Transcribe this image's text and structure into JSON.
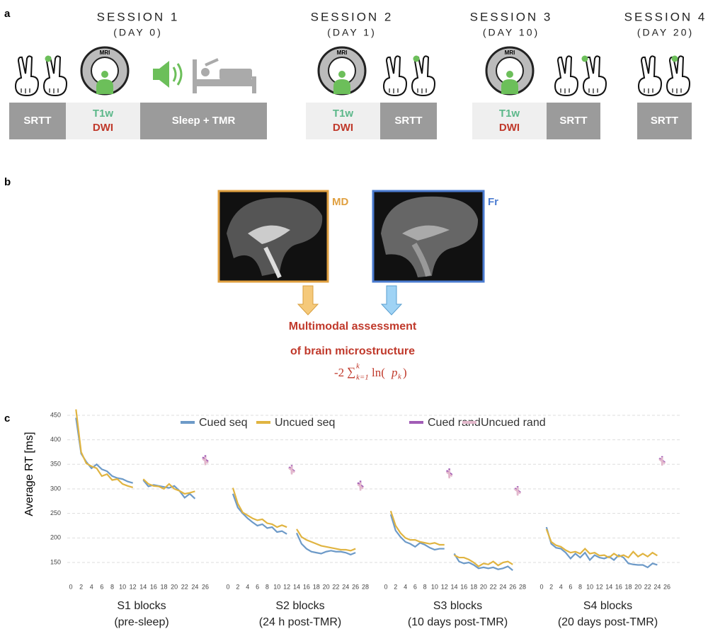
{
  "panel_labels": [
    "a",
    "b",
    "c"
  ],
  "mri_icon_label": "MRI",
  "sessions": [
    {
      "title": "SESSION 1",
      "day": "(DAY 0)",
      "boxes": [
        {
          "lines": [
            "SRTT"
          ]
        },
        {
          "lines": [
            "T1w",
            "DWI"
          ]
        },
        {
          "lines": [
            "Sleep + TMR"
          ]
        }
      ]
    },
    {
      "title": "SESSION 2",
      "day": "(DAY 1)",
      "boxes": [
        {
          "lines": [
            "T1w",
            "DWI"
          ]
        },
        {
          "lines": [
            "SRTT"
          ]
        }
      ]
    },
    {
      "title": "SESSION 3",
      "day": "(DAY 10)",
      "boxes": [
        {
          "lines": [
            "T1w",
            "DWI"
          ]
        },
        {
          "lines": [
            "SRTT"
          ]
        }
      ]
    },
    {
      "title": "SESSION 4",
      "day": "(DAY 20)",
      "boxes": [
        {
          "lines": [
            "SRTT"
          ]
        }
      ]
    }
  ],
  "panel_b": {
    "images": [
      "MD",
      "Fr"
    ],
    "text": [
      "Multimodal assessment",
      "of brain microstructure"
    ],
    "formula": {
      "coef": "-2 ",
      "sum": "∑",
      "upper": "k",
      "lower": "k=1",
      "fn": " ln(",
      "arg": "p",
      "arg_sub": "k",
      "close": ")"
    }
  },
  "chart_data": [
    {
      "type": "line",
      "ylabel": "Average RT [ms]",
      "xlabel": "S1 blocks",
      "xlabel_sub": "(pre-sleep)",
      "x": [
        1,
        2,
        3,
        4,
        5,
        6,
        7,
        8,
        9,
        10,
        11,
        12,
        13,
        14,
        15,
        16,
        17,
        18,
        19,
        20,
        21,
        22,
        23,
        24,
        26
      ],
      "xlim": [
        0,
        26
      ],
      "xticks": [
        0,
        2,
        4,
        6,
        8,
        10,
        12,
        14,
        16,
        18,
        20,
        22,
        24,
        26
      ],
      "ylim": [
        120,
        470
      ],
      "yticks": [
        150,
        200,
        250,
        300,
        350,
        400,
        450
      ],
      "grid": true,
      "series": [
        {
          "name": "Cued seq",
          "color": "#6d9ac8",
          "values": [
            445,
            372,
            355,
            342,
            350,
            340,
            336,
            326,
            322,
            320,
            315,
            312,
            null,
            318,
            305,
            308,
            306,
            304,
            302,
            306,
            296,
            282,
            290,
            280,
            null
          ]
        },
        {
          "name": "Uncued seq",
          "color": "#e0b441",
          "values": [
            462,
            375,
            352,
            346,
            342,
            326,
            330,
            318,
            320,
            310,
            306,
            303,
            null,
            320,
            310,
            306,
            305,
            300,
            310,
            300,
            296,
            290,
            292,
            295,
            null
          ]
        },
        {
          "name": "Cued rand",
          "color": "#a15cb5",
          "marker": true,
          "values": [
            null,
            null,
            null,
            null,
            null,
            null,
            null,
            null,
            null,
            null,
            null,
            null,
            null,
            null,
            null,
            null,
            null,
            null,
            null,
            null,
            null,
            null,
            null,
            null,
            360
          ]
        },
        {
          "name": "Uncued rand",
          "color": "#e3b8cc",
          "marker": true,
          "values": [
            null,
            null,
            null,
            null,
            null,
            null,
            null,
            null,
            null,
            null,
            null,
            null,
            null,
            null,
            null,
            null,
            null,
            null,
            null,
            null,
            null,
            null,
            null,
            null,
            357
          ]
        }
      ]
    },
    {
      "type": "line",
      "xlabel": "S2 blocks",
      "xlabel_sub": "(24 h post-TMR)",
      "x": [
        1,
        2,
        3,
        4,
        5,
        6,
        7,
        8,
        9,
        10,
        11,
        12,
        13,
        14,
        15,
        16,
        17,
        18,
        19,
        20,
        21,
        22,
        23,
        24,
        25,
        26,
        27
      ],
      "xlim": [
        0,
        28
      ],
      "xticks": [
        0,
        2,
        4,
        6,
        8,
        10,
        12,
        14,
        16,
        18,
        20,
        22,
        24,
        26,
        28
      ],
      "ylim": [
        120,
        470
      ],
      "series": [
        {
          "name": "Cued seq",
          "color": "#6d9ac8",
          "values": [
            290,
            262,
            250,
            240,
            232,
            225,
            228,
            220,
            222,
            212,
            214,
            208,
            null,
            210,
            188,
            178,
            172,
            170,
            168,
            172,
            174,
            172,
            172,
            170,
            166,
            170,
            null
          ]
        },
        {
          "name": "Uncued seq",
          "color": "#e0b441",
          "values": [
            302,
            270,
            252,
            246,
            240,
            236,
            238,
            230,
            228,
            222,
            226,
            222,
            null,
            218,
            202,
            196,
            192,
            188,
            184,
            182,
            180,
            178,
            176,
            176,
            174,
            178,
            null
          ]
        },
        {
          "name": "Cued rand",
          "color": "#a15cb5",
          "marker": true,
          "values": [
            null,
            null,
            null,
            null,
            null,
            null,
            null,
            null,
            null,
            null,
            null,
            null,
            340,
            null,
            null,
            null,
            null,
            null,
            null,
            null,
            null,
            null,
            null,
            null,
            null,
            null,
            308
          ]
        },
        {
          "name": "Uncued rand",
          "color": "#e3b8cc",
          "marker": true,
          "values": [
            null,
            null,
            null,
            null,
            null,
            null,
            null,
            null,
            null,
            null,
            null,
            null,
            338,
            null,
            null,
            null,
            null,
            null,
            null,
            null,
            null,
            null,
            null,
            null,
            null,
            null,
            305
          ]
        }
      ]
    },
    {
      "type": "line",
      "xlabel": "S3 blocks",
      "xlabel_sub": "(10 days post-TMR)",
      "x": [
        1,
        2,
        3,
        4,
        5,
        6,
        7,
        8,
        9,
        10,
        11,
        12,
        13,
        14,
        15,
        16,
        17,
        18,
        19,
        20,
        21,
        22,
        23,
        24,
        25,
        26,
        27
      ],
      "xlim": [
        0,
        28
      ],
      "xticks": [
        0,
        2,
        4,
        6,
        8,
        10,
        12,
        14,
        16,
        18,
        20,
        22,
        24,
        26,
        28
      ],
      "ylim": [
        120,
        470
      ],
      "series": [
        {
          "name": "Cued seq",
          "color": "#6d9ac8",
          "values": [
            248,
            215,
            202,
            192,
            188,
            182,
            190,
            186,
            180,
            176,
            178,
            178,
            null,
            168,
            152,
            148,
            150,
            145,
            138,
            140,
            138,
            140,
            136,
            138,
            142,
            134,
            null
          ]
        },
        {
          "name": "Uncued seq",
          "color": "#e0b441",
          "values": [
            255,
            225,
            210,
            200,
            196,
            196,
            192,
            190,
            188,
            190,
            186,
            186,
            null,
            165,
            160,
            160,
            156,
            150,
            142,
            148,
            146,
            152,
            144,
            150,
            152,
            146,
            null
          ]
        },
        {
          "name": "Cued rand",
          "color": "#a15cb5",
          "marker": true,
          "values": [
            null,
            null,
            null,
            null,
            null,
            null,
            null,
            null,
            null,
            null,
            null,
            null,
            333,
            null,
            null,
            null,
            null,
            null,
            null,
            null,
            null,
            null,
            null,
            null,
            null,
            null,
            297
          ]
        },
        {
          "name": "Uncued rand",
          "color": "#e3b8cc",
          "marker": true,
          "values": [
            null,
            null,
            null,
            null,
            null,
            null,
            null,
            null,
            null,
            null,
            null,
            null,
            330,
            null,
            null,
            null,
            null,
            null,
            null,
            null,
            null,
            null,
            null,
            null,
            null,
            null,
            295
          ]
        }
      ]
    },
    {
      "type": "line",
      "xlabel": "S4 blocks",
      "xlabel_sub": "(20 days post-TMR)",
      "x": [
        1,
        2,
        3,
        4,
        5,
        6,
        7,
        8,
        9,
        10,
        11,
        12,
        13,
        14,
        15,
        16,
        17,
        18,
        19,
        20,
        21,
        22,
        23,
        24,
        25
      ],
      "xlim": [
        0,
        26
      ],
      "xticks": [
        0,
        2,
        4,
        6,
        8,
        10,
        12,
        14,
        16,
        18,
        20,
        22,
        24,
        26
      ],
      "ylim": [
        120,
        470
      ],
      "series": [
        {
          "name": "Cued seq",
          "color": "#6d9ac8",
          "values": [
            222,
            188,
            180,
            178,
            170,
            158,
            168,
            160,
            170,
            155,
            165,
            160,
            158,
            162,
            155,
            165,
            160,
            148,
            146,
            145,
            145,
            140,
            148,
            145,
            null
          ]
        },
        {
          "name": "Uncued seq",
          "color": "#e0b441",
          "values": [
            218,
            192,
            185,
            182,
            175,
            170,
            172,
            168,
            178,
            168,
            170,
            164,
            165,
            160,
            168,
            162,
            165,
            160,
            172,
            162,
            168,
            162,
            170,
            164,
            null
          ]
        },
        {
          "name": "Cued rand",
          "color": "#a15cb5",
          "marker": true,
          "values": [
            null,
            null,
            null,
            null,
            null,
            null,
            null,
            null,
            null,
            null,
            null,
            null,
            null,
            null,
            null,
            null,
            null,
            null,
            null,
            null,
            null,
            null,
            null,
            null,
            358
          ]
        },
        {
          "name": "Uncued rand",
          "color": "#e3b8cc",
          "marker": true,
          "values": [
            null,
            null,
            null,
            null,
            null,
            null,
            null,
            null,
            null,
            null,
            null,
            null,
            null,
            null,
            null,
            null,
            null,
            null,
            null,
            null,
            null,
            null,
            null,
            null,
            356
          ]
        }
      ]
    }
  ]
}
